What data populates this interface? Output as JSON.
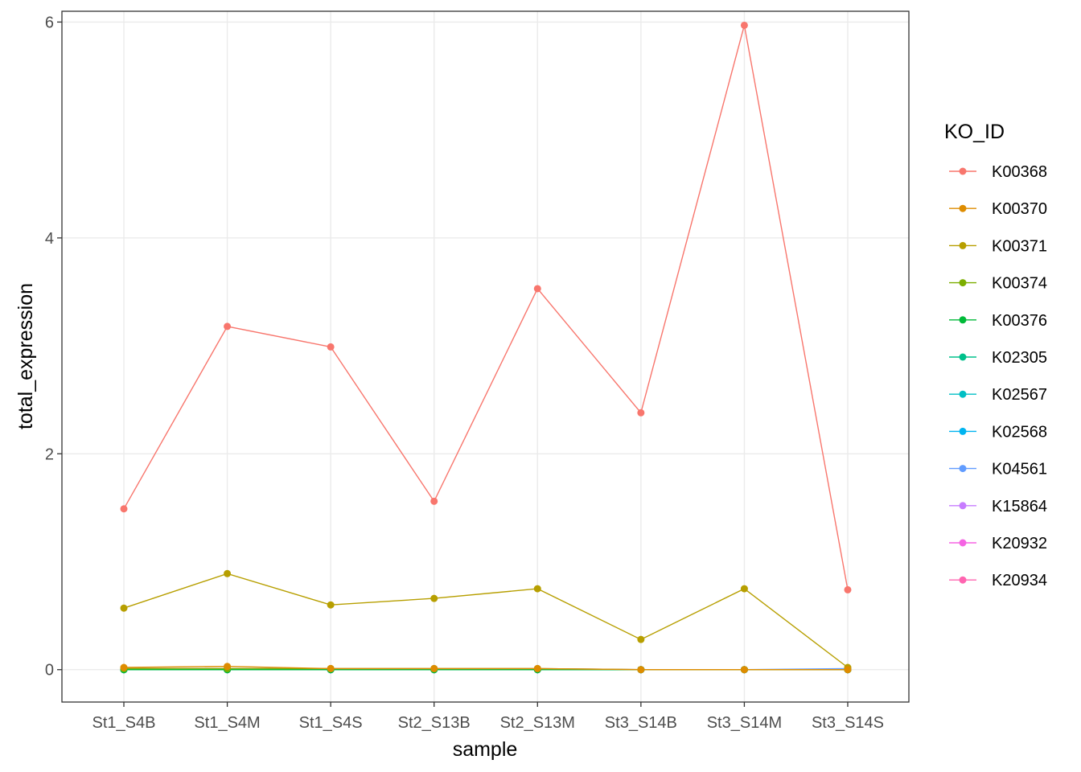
{
  "chart_data": {
    "type": "line",
    "xlabel": "sample",
    "ylabel": "total_expression",
    "ylim": [
      -0.3,
      6.1
    ],
    "yticks": [
      0,
      2,
      4,
      6
    ],
    "grid": true,
    "legend_title": "KO_ID",
    "legend_position": "right",
    "categories": [
      "St1_S4B",
      "St1_S4M",
      "St1_S4S",
      "St2_S13B",
      "St2_S13M",
      "St3_S14B",
      "St3_S14M",
      "St3_S14S"
    ],
    "series": [
      {
        "name": "K00368",
        "color": "#F8766D",
        "values": [
          1.49,
          3.18,
          2.99,
          1.56,
          3.53,
          2.38,
          5.97,
          0.74
        ]
      },
      {
        "name": "K00370",
        "color": "#DE8C00",
        "values": [
          0.02,
          0.03,
          0.01,
          0.01,
          0.01,
          0.0,
          0.0,
          0.0
        ]
      },
      {
        "name": "K00371",
        "color": "#B79F00",
        "values": [
          0.57,
          0.89,
          0.6,
          0.66,
          0.75,
          0.28,
          0.75,
          0.02
        ]
      },
      {
        "name": "K00374",
        "color": "#7CAE00",
        "values": [
          0.01,
          0.01,
          0.01,
          0.01,
          0.01,
          0.0,
          0.0,
          0.0
        ]
      },
      {
        "name": "K00376",
        "color": "#00BA38",
        "values": [
          0.0,
          0.0,
          0.0,
          0.0,
          0.0,
          0.0,
          0.0,
          0.0
        ]
      },
      {
        "name": "K02305",
        "color": "#00C08B",
        "values": [
          0.0,
          0.0,
          0.0,
          0.0,
          0.0,
          0.0,
          0.0,
          0.0
        ]
      },
      {
        "name": "K02567",
        "color": "#00BFC4",
        "values": [
          0.0,
          0.0,
          0.0,
          0.0,
          0.0,
          0.0,
          0.0,
          0.0
        ]
      },
      {
        "name": "K02568",
        "color": "#00B4F0",
        "values": [
          0.0,
          0.0,
          0.0,
          0.0,
          0.0,
          0.0,
          0.0,
          0.0
        ]
      },
      {
        "name": "K04561",
        "color": "#619CFF",
        "values": [
          0.0,
          0.0,
          0.0,
          0.0,
          0.0,
          0.0,
          0.0,
          0.01
        ]
      },
      {
        "name": "K15864",
        "color": "#C77CFF",
        "values": [
          0.01,
          0.01,
          0.01,
          0.01,
          0.01,
          0.0,
          0.0,
          0.0
        ]
      },
      {
        "name": "K20932",
        "color": "#F564E3",
        "values": [
          0.0,
          0.0,
          0.0,
          0.0,
          0.0,
          0.0,
          0.0,
          0.0
        ]
      },
      {
        "name": "K20934",
        "color": "#FF64B0",
        "values": [
          0.0,
          0.0,
          0.0,
          0.0,
          0.0,
          0.0,
          0.0,
          0.0
        ]
      }
    ]
  }
}
